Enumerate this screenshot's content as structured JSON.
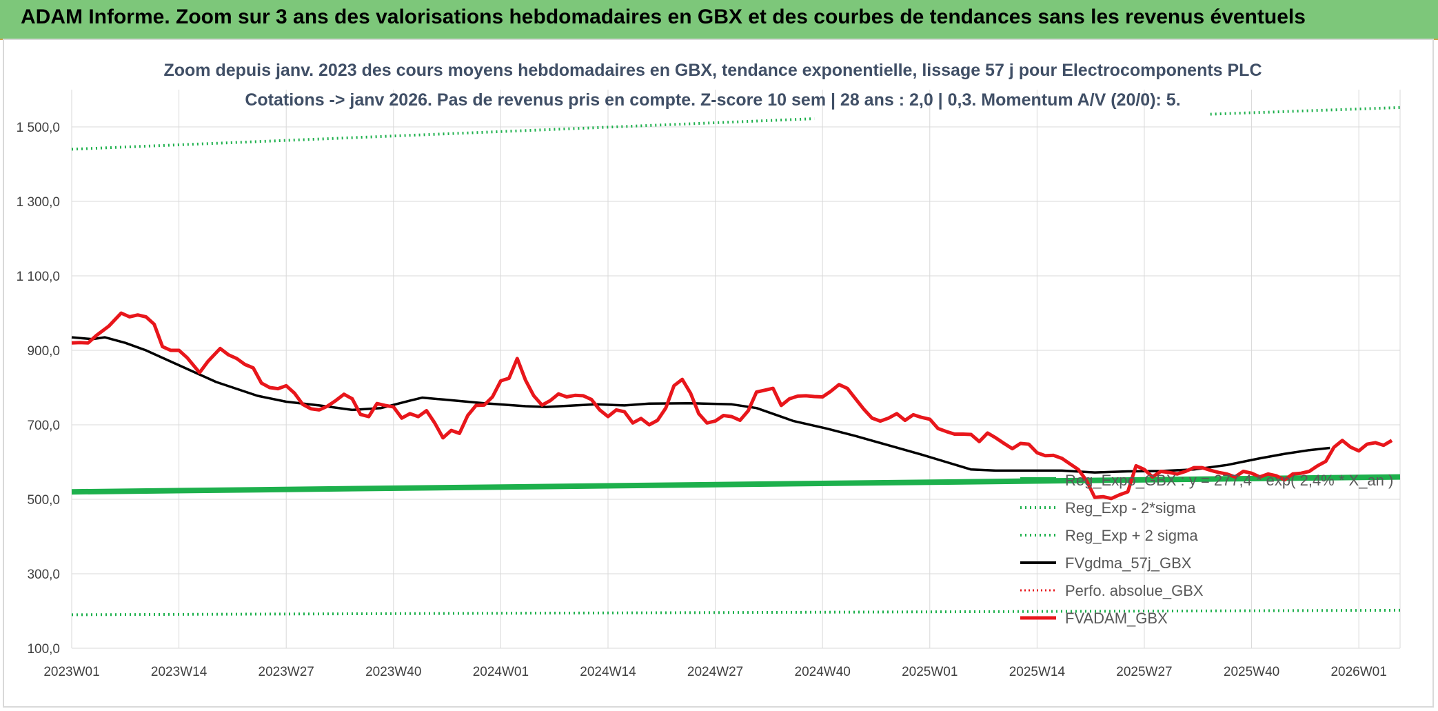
{
  "header": {
    "title": "ADAM Informe. Zoom sur 3 ans des valorisations hebdomadaires en GBX et des courbes de tendances sans les revenus éventuels"
  },
  "colors": {
    "banner": "#7dc77a",
    "reg_expo": "#1db04c",
    "band": "#1db04c",
    "fvgdma": "#000000",
    "fvadam": "#e8161b",
    "perfo": "#e8161b",
    "grid": "#d9d9d9"
  },
  "chart_data": {
    "type": "line",
    "title_line1": "Zoom depuis janv. 2023 des cours moyens hebdomadaires en GBX, tendance exponentielle, lissage 57 j pour Electrocomponents PLC",
    "title_line2": "Cotations -> janv 2026. Pas de revenus pris en compte. Z-score 10 sem | 28 ans : 2,0 | 0,3. Momentum A/V (20/0): 5.",
    "x_tick_labels": [
      "2023W01",
      "2023W14",
      "2023W27",
      "2023W40",
      "2024W01",
      "2024W14",
      "2024W27",
      "2024W40",
      "2025W01",
      "2025W14",
      "2025W27",
      "2025W40",
      "2026W01"
    ],
    "y_tick_labels": [
      "100,0",
      "300,0",
      "500,0",
      "700,0",
      "900,0",
      "1 100,0",
      "1 300,0",
      "1 500,0"
    ],
    "ylim": [
      100,
      1600
    ],
    "x_count": 162,
    "legend": [
      {
        "label": "Reg_Expo_GBX : y = 277,4 * exp( 2,4% * X_an )",
        "style": "solid-thick-green"
      },
      {
        "label": "Reg_Exp - 2*sigma",
        "style": "dotted-green"
      },
      {
        "label": "Reg_Exp + 2 sigma",
        "style": "dotted-green"
      },
      {
        "label": "FVgdma_57j_GBX",
        "style": "solid-black"
      },
      {
        "label": "Perfo. absolue_GBX",
        "style": "dotted-red"
      },
      {
        "label": "FVADAM_GBX",
        "style": "solid-thick-red"
      }
    ],
    "series": [
      {
        "name": "Reg_Expo_GBX",
        "points": [
          [
            0,
            520
          ],
          [
            161,
            560
          ]
        ]
      },
      {
        "name": "Reg_Exp - 2*sigma",
        "points": [
          [
            0,
            190
          ],
          [
            161,
            202
          ]
        ]
      },
      {
        "name": "Reg_Exp + 2 sigma",
        "points": [
          [
            0,
            1440
          ],
          [
            90,
            1522
          ]
        ],
        "points_b": [
          [
            138,
            1534
          ],
          [
            161,
            1552
          ]
        ]
      },
      {
        "name": "FVgdma_57j_GBX",
        "points": [
          [
            0,
            935
          ],
          [
            5,
            930
          ],
          [
            8,
            935
          ],
          [
            13,
            920
          ],
          [
            18,
            900
          ],
          [
            26,
            860
          ],
          [
            35,
            815
          ],
          [
            45,
            778
          ],
          [
            52,
            762
          ],
          [
            60,
            752
          ],
          [
            68,
            740
          ],
          [
            75,
            745
          ],
          [
            82,
            765
          ],
          [
            85,
            773
          ],
          [
            90,
            768
          ],
          [
            100,
            758
          ],
          [
            110,
            750
          ],
          [
            115,
            748
          ],
          [
            122,
            752
          ],
          [
            127,
            755
          ],
          [
            134,
            752
          ],
          [
            140,
            757
          ],
          [
            150,
            758
          ],
          [
            160,
            755
          ],
          [
            166,
            745
          ],
          [
            175,
            710
          ],
          [
            183,
            690
          ],
          [
            190,
            670
          ],
          [
            198,
            645
          ],
          [
            206,
            620
          ],
          [
            212,
            600
          ],
          [
            218,
            580
          ],
          [
            224,
            577
          ],
          [
            232,
            577
          ],
          [
            240,
            577
          ],
          [
            248,
            572
          ],
          [
            256,
            575
          ],
          [
            264,
            576
          ],
          [
            272,
            580
          ],
          [
            280,
            592
          ],
          [
            288,
            610
          ],
          [
            294,
            622
          ],
          [
            300,
            632
          ],
          [
            305,
            638
          ]
        ]
      },
      {
        "name": "FVADAM_GBX",
        "points": [
          [
            0,
            920
          ],
          [
            2,
            921
          ],
          [
            4,
            920
          ],
          [
            6,
            940
          ],
          [
            9,
            965
          ],
          [
            12,
            1000
          ],
          [
            14,
            990
          ],
          [
            16,
            995
          ],
          [
            18,
            990
          ],
          [
            20,
            970
          ],
          [
            22,
            910
          ],
          [
            24,
            900
          ],
          [
            26,
            900
          ],
          [
            28,
            880
          ],
          [
            31,
            840
          ],
          [
            33,
            870
          ],
          [
            36,
            905
          ],
          [
            38,
            888
          ],
          [
            40,
            878
          ],
          [
            42,
            862
          ],
          [
            44,
            853
          ],
          [
            46,
            812
          ],
          [
            48,
            800
          ],
          [
            50,
            797
          ],
          [
            52,
            805
          ],
          [
            54,
            785
          ],
          [
            56,
            755
          ],
          [
            58,
            743
          ],
          [
            60,
            740
          ],
          [
            62,
            750
          ],
          [
            64,
            765
          ],
          [
            66,
            782
          ],
          [
            68,
            770
          ],
          [
            70,
            728
          ],
          [
            72,
            722
          ],
          [
            74,
            757
          ],
          [
            76,
            752
          ],
          [
            78,
            748
          ],
          [
            80,
            718
          ],
          [
            82,
            730
          ],
          [
            84,
            722
          ],
          [
            86,
            738
          ],
          [
            88,
            705
          ],
          [
            90,
            665
          ],
          [
            92,
            685
          ],
          [
            94,
            677
          ],
          [
            96,
            725
          ],
          [
            98,
            752
          ],
          [
            100,
            753
          ],
          [
            102,
            775
          ],
          [
            104,
            818
          ],
          [
            106,
            825
          ],
          [
            108,
            878
          ],
          [
            110,
            820
          ],
          [
            112,
            778
          ],
          [
            114,
            753
          ],
          [
            116,
            765
          ],
          [
            118,
            783
          ],
          [
            120,
            775
          ],
          [
            122,
            779
          ],
          [
            124,
            778
          ],
          [
            126,
            768
          ],
          [
            128,
            740
          ],
          [
            130,
            722
          ],
          [
            132,
            740
          ],
          [
            134,
            735
          ],
          [
            136,
            705
          ],
          [
            138,
            717
          ],
          [
            140,
            700
          ],
          [
            142,
            712
          ],
          [
            144,
            745
          ],
          [
            146,
            805
          ],
          [
            148,
            822
          ],
          [
            150,
            785
          ],
          [
            152,
            730
          ],
          [
            154,
            705
          ],
          [
            156,
            710
          ],
          [
            158,
            725
          ],
          [
            160,
            722
          ],
          [
            162,
            712
          ],
          [
            164,
            738
          ],
          [
            166,
            788
          ],
          [
            168,
            793
          ],
          [
            170,
            798
          ],
          [
            172,
            752
          ],
          [
            174,
            770
          ],
          [
            176,
            777
          ],
          [
            178,
            778
          ],
          [
            180,
            776
          ],
          [
            182,
            775
          ],
          [
            184,
            790
          ],
          [
            186,
            808
          ],
          [
            188,
            798
          ],
          [
            190,
            770
          ],
          [
            192,
            742
          ],
          [
            194,
            718
          ],
          [
            196,
            710
          ],
          [
            198,
            718
          ],
          [
            200,
            730
          ],
          [
            202,
            712
          ],
          [
            204,
            727
          ],
          [
            206,
            720
          ],
          [
            208,
            715
          ],
          [
            210,
            690
          ],
          [
            212,
            682
          ],
          [
            214,
            675
          ],
          [
            216,
            675
          ],
          [
            218,
            674
          ],
          [
            220,
            655
          ],
          [
            222,
            678
          ],
          [
            224,
            665
          ],
          [
            226,
            650
          ],
          [
            228,
            636
          ],
          [
            230,
            650
          ],
          [
            232,
            648
          ],
          [
            234,
            625
          ],
          [
            236,
            617
          ],
          [
            238,
            618
          ],
          [
            240,
            610
          ],
          [
            242,
            595
          ],
          [
            244,
            580
          ],
          [
            246,
            550
          ],
          [
            248,
            505
          ],
          [
            250,
            507
          ],
          [
            252,
            502
          ],
          [
            254,
            512
          ],
          [
            256,
            520
          ],
          [
            258,
            590
          ],
          [
            260,
            580
          ],
          [
            262,
            560
          ],
          [
            264,
            575
          ],
          [
            266,
            572
          ],
          [
            268,
            568
          ],
          [
            270,
            575
          ],
          [
            272,
            585
          ],
          [
            274,
            585
          ],
          [
            276,
            578
          ],
          [
            278,
            572
          ],
          [
            280,
            568
          ],
          [
            282,
            560
          ],
          [
            284,
            575
          ],
          [
            286,
            570
          ],
          [
            288,
            560
          ],
          [
            290,
            568
          ],
          [
            292,
            563
          ],
          [
            294,
            552
          ],
          [
            296,
            568
          ],
          [
            298,
            570
          ],
          [
            300,
            575
          ],
          [
            302,
            590
          ],
          [
            304,
            602
          ],
          [
            306,
            640
          ],
          [
            308,
            658
          ],
          [
            310,
            640
          ],
          [
            312,
            630
          ],
          [
            314,
            648
          ],
          [
            316,
            652
          ],
          [
            318,
            645
          ],
          [
            320,
            658
          ]
        ]
      }
    ]
  }
}
